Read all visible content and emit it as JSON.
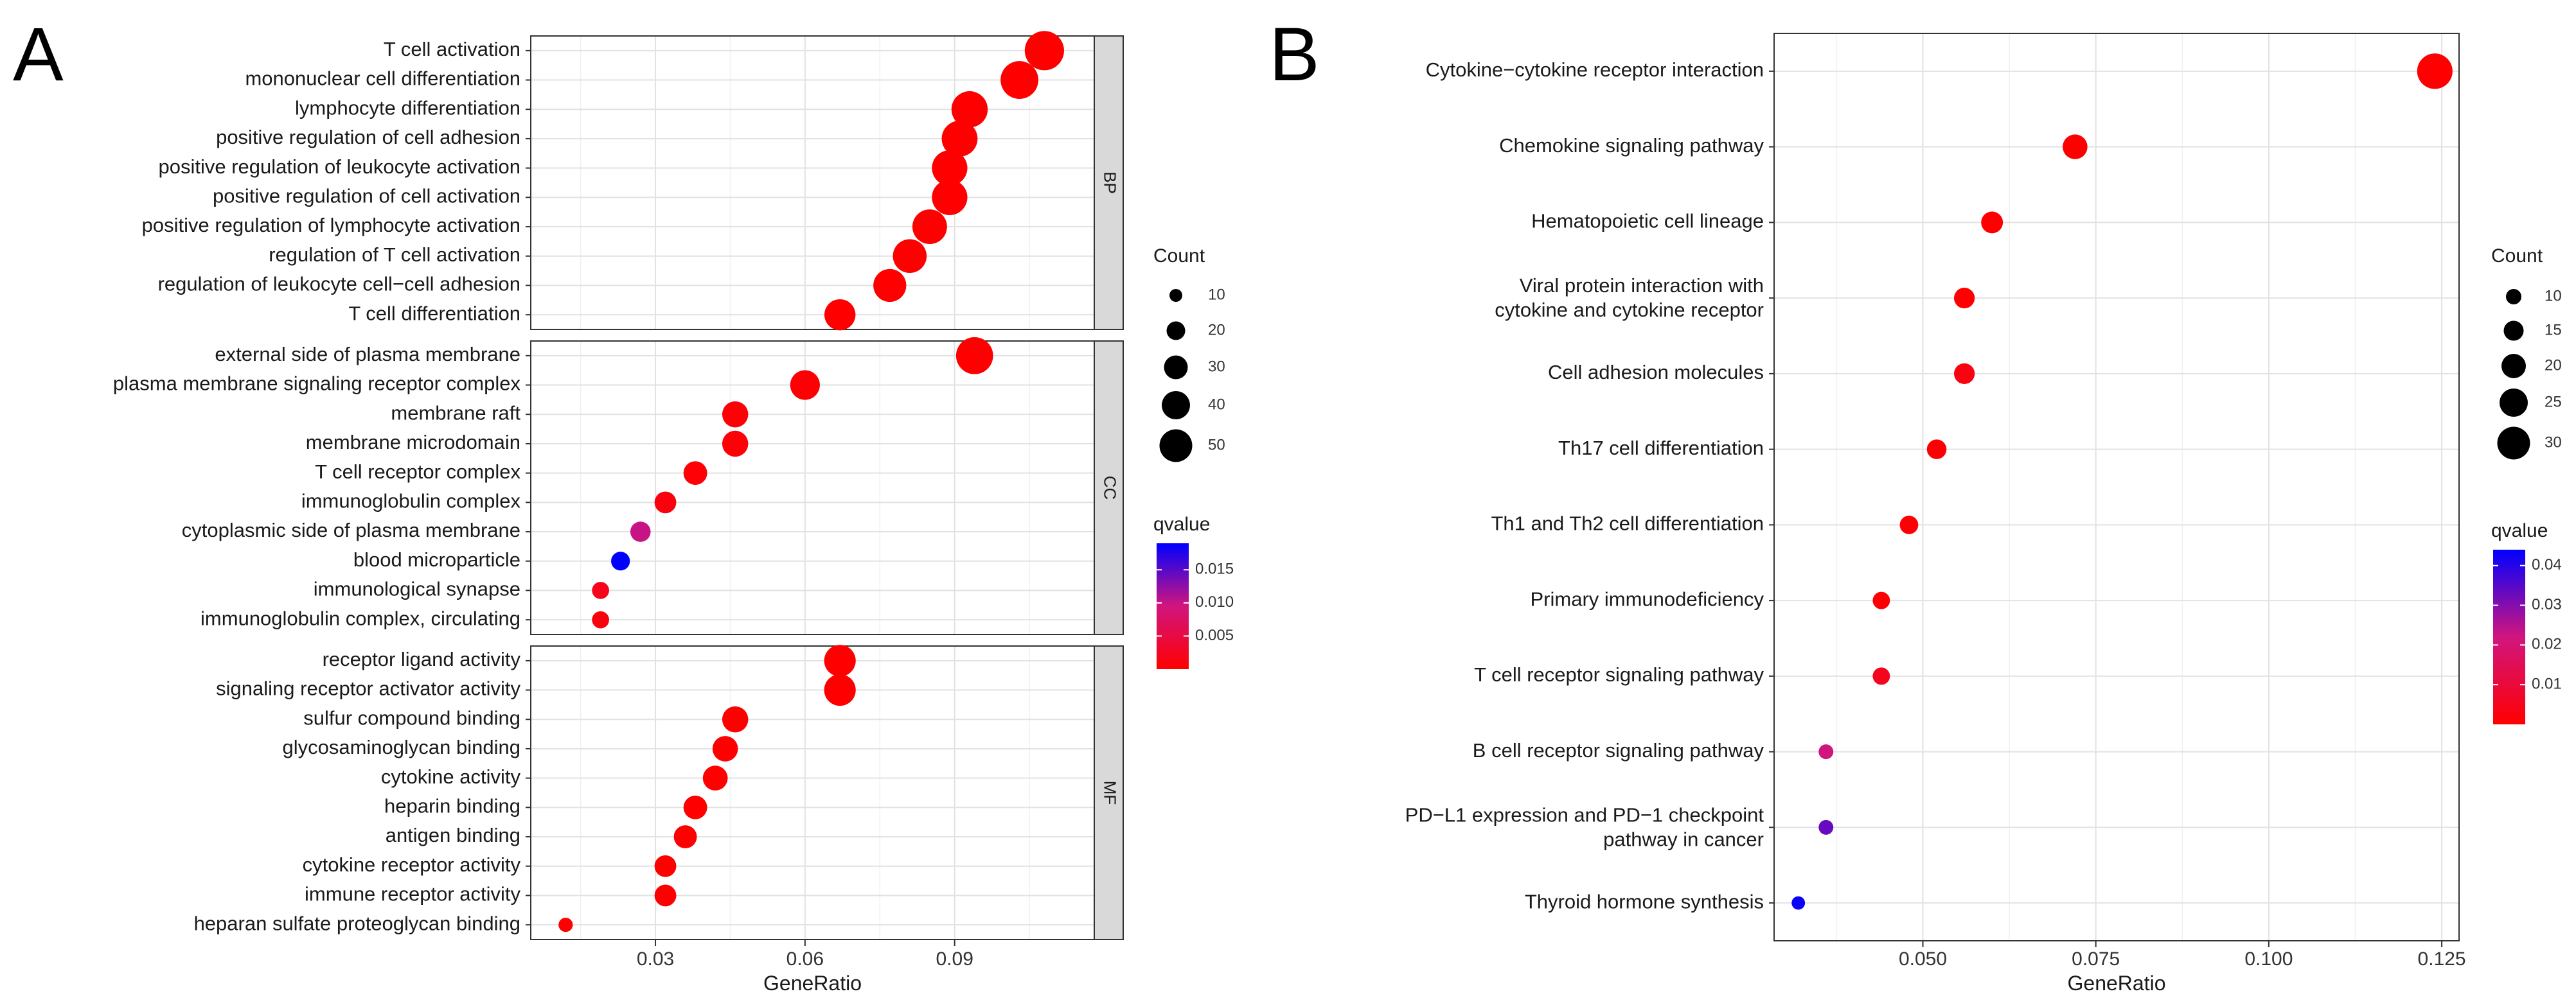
{
  "chart_data": [
    {
      "panel": "A",
      "type": "scatter",
      "xlabel": "GeneRatio",
      "xticks": [
        "0.03",
        "0.06",
        "0.09"
      ],
      "xlim": [
        0.005,
        0.118
      ],
      "facets": [
        {
          "name": "BP",
          "terms": [
            {
              "label": "T cell activation",
              "x": 0.108,
              "count": 52,
              "qvalue": 0.0001
            },
            {
              "label": "mononuclear cell differentiation",
              "x": 0.103,
              "count": 48,
              "qvalue": 0.0001
            },
            {
              "label": "lymphocyte differentiation",
              "x": 0.093,
              "count": 44,
              "qvalue": 0.0001
            },
            {
              "label": "positive regulation of cell adhesion",
              "x": 0.091,
              "count": 43,
              "qvalue": 0.0001
            },
            {
              "label": "positive regulation of leukocyte activation",
              "x": 0.089,
              "count": 42,
              "qvalue": 0.0001
            },
            {
              "label": "positive regulation of cell activation",
              "x": 0.089,
              "count": 42,
              "qvalue": 0.0001
            },
            {
              "label": "positive regulation of lymphocyte activation",
              "x": 0.085,
              "count": 40,
              "qvalue": 0.0001
            },
            {
              "label": "regulation of T cell activation",
              "x": 0.081,
              "count": 38,
              "qvalue": 0.0001
            },
            {
              "label": "regulation of leukocyte cell−cell adhesion",
              "x": 0.077,
              "count": 36,
              "qvalue": 0.0001
            },
            {
              "label": "T cell differentiation",
              "x": 0.067,
              "count": 32,
              "qvalue": 0.0001
            }
          ]
        },
        {
          "name": "CC",
          "terms": [
            {
              "label": "external side of plasma membrane",
              "x": 0.094,
              "count": 46,
              "qvalue": 0.0001
            },
            {
              "label": "plasma membrane signaling receptor complex",
              "x": 0.06,
              "count": 29,
              "qvalue": 0.0002
            },
            {
              "label": "membrane raft",
              "x": 0.046,
              "count": 22,
              "qvalue": 0.0005
            },
            {
              "label": "membrane microdomain",
              "x": 0.046,
              "count": 22,
              "qvalue": 0.0005
            },
            {
              "label": "T cell receptor complex",
              "x": 0.038,
              "count": 18,
              "qvalue": 0.0005
            },
            {
              "label": "immunoglobulin complex",
              "x": 0.032,
              "count": 15,
              "qvalue": 0.001
            },
            {
              "label": "cytoplasmic side of plasma membrane",
              "x": 0.027,
              "count": 13,
              "qvalue": 0.01
            },
            {
              "label": "blood microparticle",
              "x": 0.023,
              "count": 11,
              "qvalue": 0.019
            },
            {
              "label": "immunological synapse",
              "x": 0.019,
              "count": 9,
              "qvalue": 0.002
            },
            {
              "label": "immunoglobulin complex, circulating",
              "x": 0.019,
              "count": 9,
              "qvalue": 0.001
            }
          ]
        },
        {
          "name": "MF",
          "terms": [
            {
              "label": "receptor ligand activity",
              "x": 0.067,
              "count": 33,
              "qvalue": 0.0001
            },
            {
              "label": "signaling receptor activator activity",
              "x": 0.067,
              "count": 33,
              "qvalue": 0.0001
            },
            {
              "label": "sulfur compound binding",
              "x": 0.046,
              "count": 22,
              "qvalue": 0.0001
            },
            {
              "label": "glycosaminoglycan binding",
              "x": 0.044,
              "count": 21,
              "qvalue": 0.0001
            },
            {
              "label": "cytokine activity",
              "x": 0.042,
              "count": 20,
              "qvalue": 0.0001
            },
            {
              "label": "heparin binding",
              "x": 0.038,
              "count": 18,
              "qvalue": 0.0001
            },
            {
              "label": "antigen binding",
              "x": 0.036,
              "count": 17,
              "qvalue": 0.0001
            },
            {
              "label": "cytokine receptor activity",
              "x": 0.032,
              "count": 15,
              "qvalue": 0.0001
            },
            {
              "label": "immune receptor activity",
              "x": 0.032,
              "count": 15,
              "qvalue": 0.0001
            },
            {
              "label": "heparan sulfate proteoglycan binding",
              "x": 0.012,
              "count": 6,
              "qvalue": 0.0001
            }
          ]
        }
      ],
      "size_legend": {
        "title": "Count",
        "values": [
          10,
          20,
          30,
          40,
          50
        ]
      },
      "color_legend": {
        "title": "qvalue",
        "ticks": [
          "0.015",
          "0.010",
          "0.005"
        ],
        "min": 0.0,
        "max": 0.019,
        "low_color": "#ff0000",
        "high_color": "#0000ff"
      }
    },
    {
      "panel": "B",
      "type": "scatter",
      "xlabel": "GeneRatio",
      "xticks": [
        "0.050",
        "0.075",
        "0.100",
        "0.125"
      ],
      "xlim": [
        0.0285,
        0.1275
      ],
      "terms": [
        {
          "label": "Cytokine−cytokine receptor interaction",
          "x": 0.124,
          "count": 31,
          "qvalue": 0.0001
        },
        {
          "label": "Chemokine signaling pathway",
          "x": 0.072,
          "count": 18,
          "qvalue": 0.0001
        },
        {
          "label": "Hematopoietic cell lineage",
          "x": 0.06,
          "count": 15,
          "qvalue": 0.0001
        },
        {
          "label": "Viral protein interaction with\ncytokine and cytokine receptor",
          "x": 0.056,
          "count": 14,
          "qvalue": 0.0001
        },
        {
          "label": "Cell adhesion molecules",
          "x": 0.056,
          "count": 14,
          "qvalue": 0.003
        },
        {
          "label": "Th17 cell differentiation",
          "x": 0.052,
          "count": 13,
          "qvalue": 0.0005
        },
        {
          "label": "Th1 and Th2 cell differentiation",
          "x": 0.048,
          "count": 12,
          "qvalue": 0.0005
        },
        {
          "label": "Primary immunodeficiency",
          "x": 0.044,
          "count": 11,
          "qvalue": 0.0005
        },
        {
          "label": "T cell receptor signaling pathway",
          "x": 0.044,
          "count": 11,
          "qvalue": 0.005
        },
        {
          "label": "B cell receptor signaling pathway",
          "x": 0.036,
          "count": 9,
          "qvalue": 0.022
        },
        {
          "label": "PD−L1 expression and PD−1 checkpoint\npathway in cancer",
          "x": 0.036,
          "count": 9,
          "qvalue": 0.033
        },
        {
          "label": "Thyroid hormone synthesis",
          "x": 0.032,
          "count": 8,
          "qvalue": 0.043
        }
      ],
      "size_legend": {
        "title": "Count",
        "values": [
          10,
          15,
          20,
          25,
          30
        ]
      },
      "color_legend": {
        "title": "qvalue",
        "ticks": [
          "0.04",
          "0.03",
          "0.02",
          "0.01"
        ],
        "min": 0.0,
        "max": 0.044,
        "low_color": "#ff0000",
        "high_color": "#0000ff"
      }
    }
  ]
}
